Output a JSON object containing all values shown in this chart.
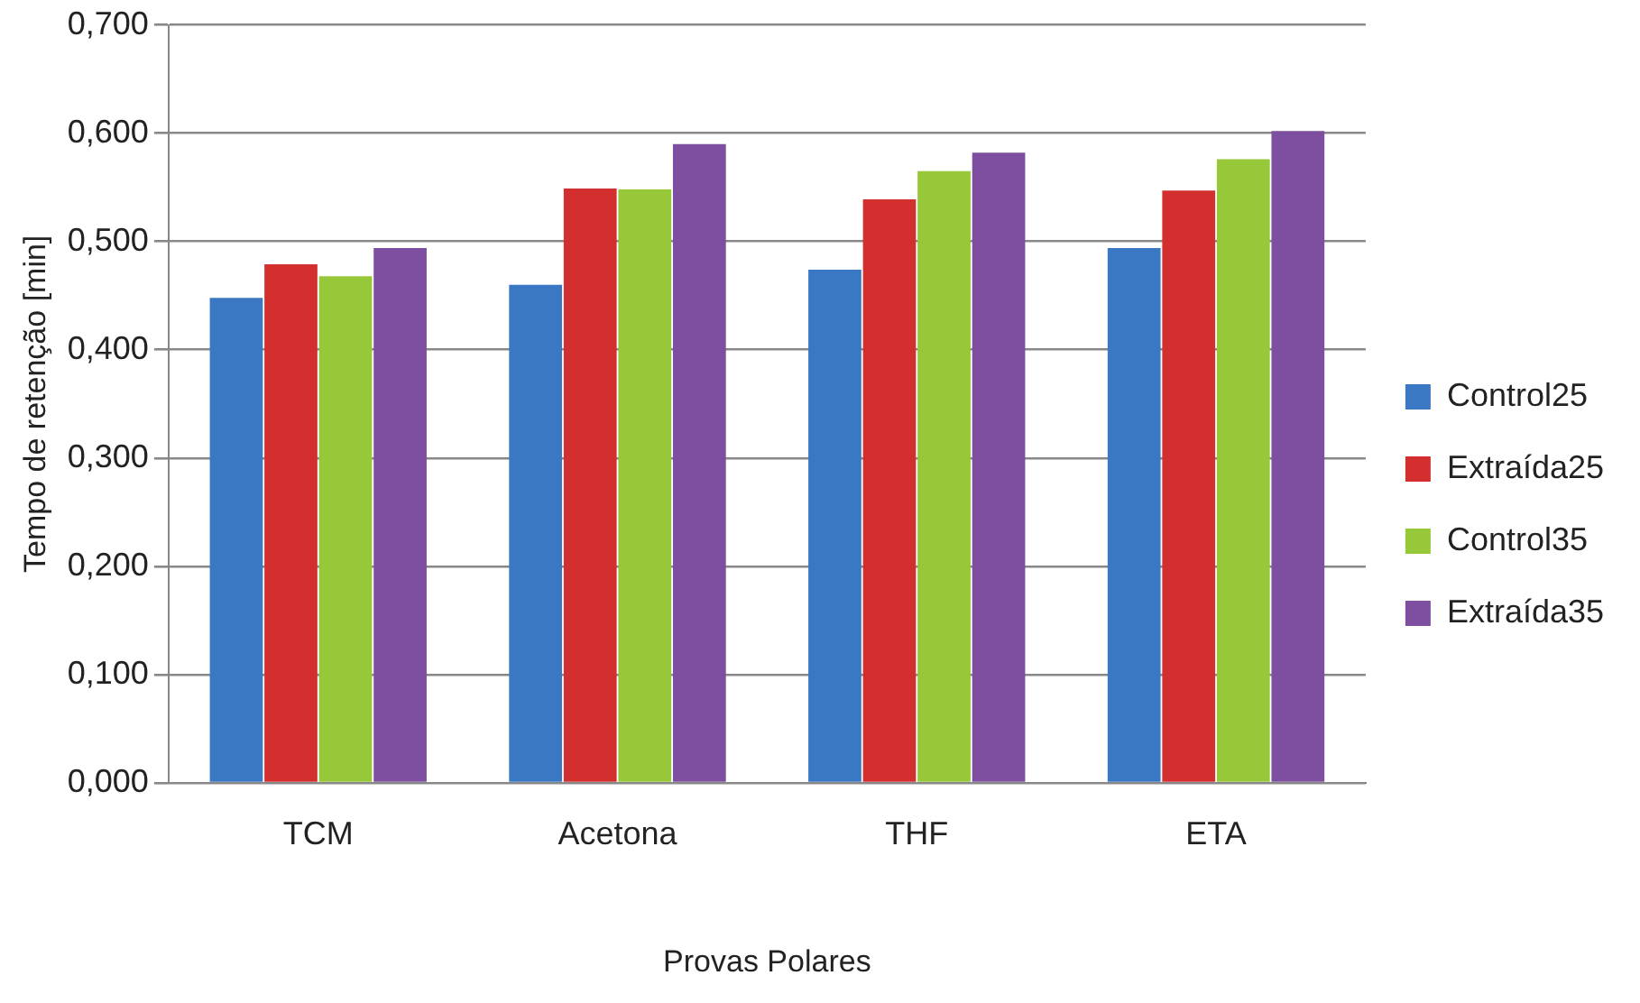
{
  "chart_data": {
    "type": "bar",
    "xlabel": "Provas Polares",
    "ylabel": "Tempo de retenção [min]",
    "categories": [
      "TCM",
      "Acetona",
      "THF",
      "ETA"
    ],
    "series": [
      {
        "name": "Control25",
        "color": "#3a78c3",
        "values": [
          0.448,
          0.46,
          0.474,
          0.494
        ]
      },
      {
        "name": "Extraída25",
        "color": "#d42f2f",
        "values": [
          0.479,
          0.549,
          0.539,
          0.547
        ]
      },
      {
        "name": "Control35",
        "color": "#96c83a",
        "values": [
          0.468,
          0.548,
          0.565,
          0.576
        ]
      },
      {
        "name": "Extraída35",
        "color": "#7e4fa0",
        "values": [
          0.494,
          0.59,
          0.582,
          0.602
        ]
      }
    ],
    "ylim": [
      0,
      0.7
    ],
    "yticks": [
      {
        "value": 0,
        "label": "0,000"
      },
      {
        "value": 0.1,
        "label": "0,100"
      },
      {
        "value": 0.2,
        "label": "0,200"
      },
      {
        "value": 0.3,
        "label": "0,300"
      },
      {
        "value": 0.4,
        "label": "0,400"
      },
      {
        "value": 0.5,
        "label": "0,500"
      },
      {
        "value": 0.6,
        "label": "0,600"
      },
      {
        "value": 0.7,
        "label": "0,700"
      }
    ],
    "grid": "y",
    "legend": "right"
  }
}
